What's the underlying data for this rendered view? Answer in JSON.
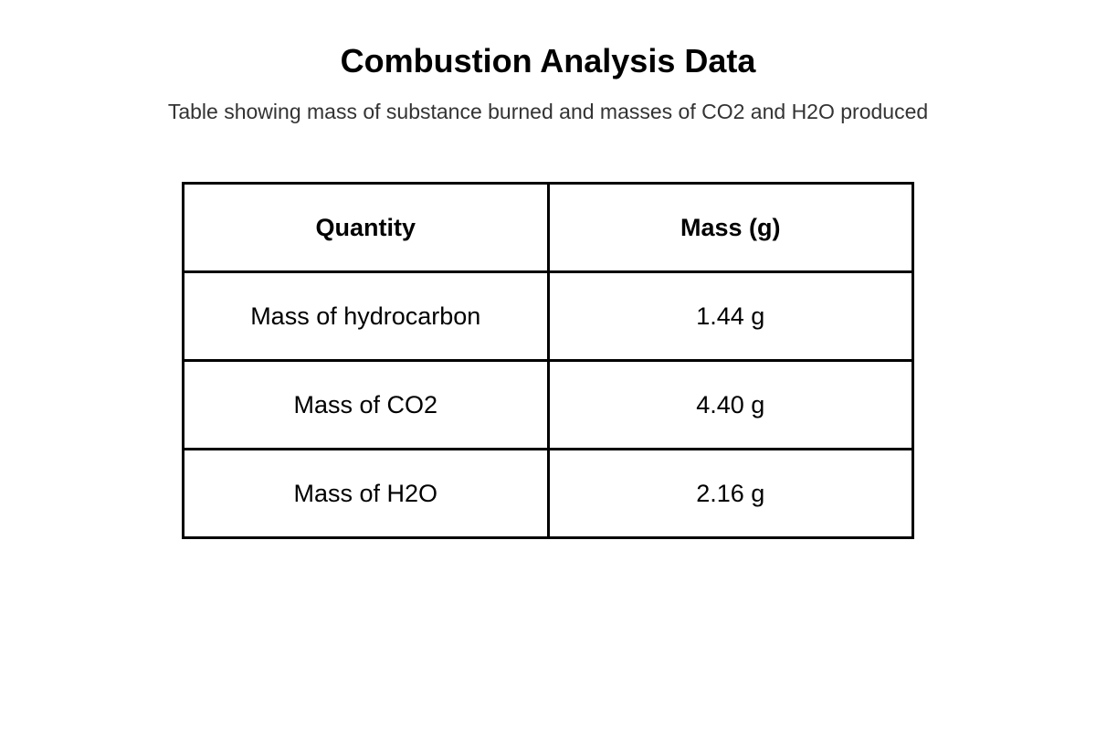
{
  "title": "Combustion Analysis Data",
  "subtitle": "Table showing mass of substance burned and masses of CO2 and H2O produced",
  "table": {
    "headers": [
      "Quantity",
      "Mass (g)"
    ],
    "rows": [
      [
        "Mass of hydrocarbon",
        "1.44 g"
      ],
      [
        "Mass of CO2",
        "4.40 g"
      ],
      [
        "Mass of H2O",
        "2.16 g"
      ]
    ]
  }
}
